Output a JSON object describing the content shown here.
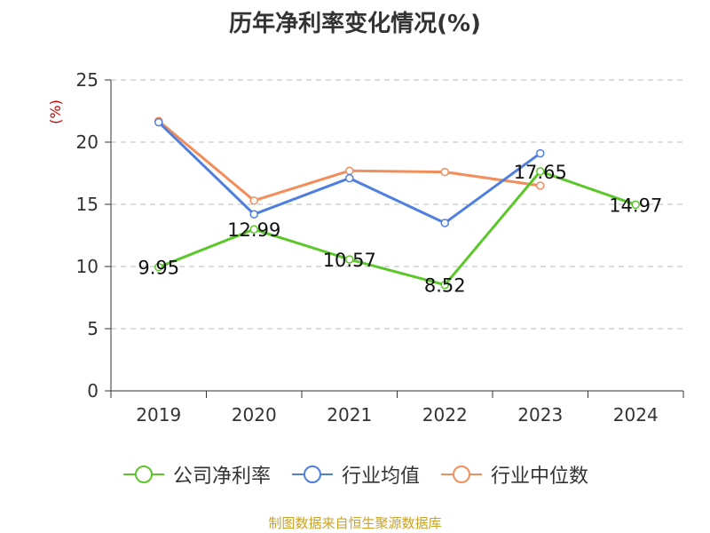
{
  "chart_data": {
    "type": "line",
    "title": "历年净利率变化情况(%)",
    "ylabel": "(%)",
    "ylabel_color": "#cc0000",
    "categories": [
      "2019",
      "2020",
      "2021",
      "2022",
      "2023",
      "2024"
    ],
    "ylim": [
      0,
      25
    ],
    "yticks": [
      0,
      5,
      10,
      15,
      20,
      25
    ],
    "grid": true,
    "legend_position": "bottom",
    "series": [
      {
        "name": "公司净利率",
        "color": "#5cc72a",
        "values": [
          9.95,
          12.99,
          10.57,
          8.52,
          17.65,
          14.97
        ],
        "labels": [
          "9.95",
          "12.99",
          "10.57",
          "8.52",
          "17.65",
          "14.97"
        ]
      },
      {
        "name": "行业均值",
        "color": "#4f7fde",
        "values": [
          21.6,
          14.2,
          17.1,
          13.5,
          19.1,
          null
        ]
      },
      {
        "name": "行业中位数",
        "color": "#f28e5b",
        "values": [
          21.7,
          15.3,
          17.7,
          17.6,
          16.5,
          null
        ]
      }
    ]
  },
  "source": "制图数据来自恒生聚源数据库"
}
